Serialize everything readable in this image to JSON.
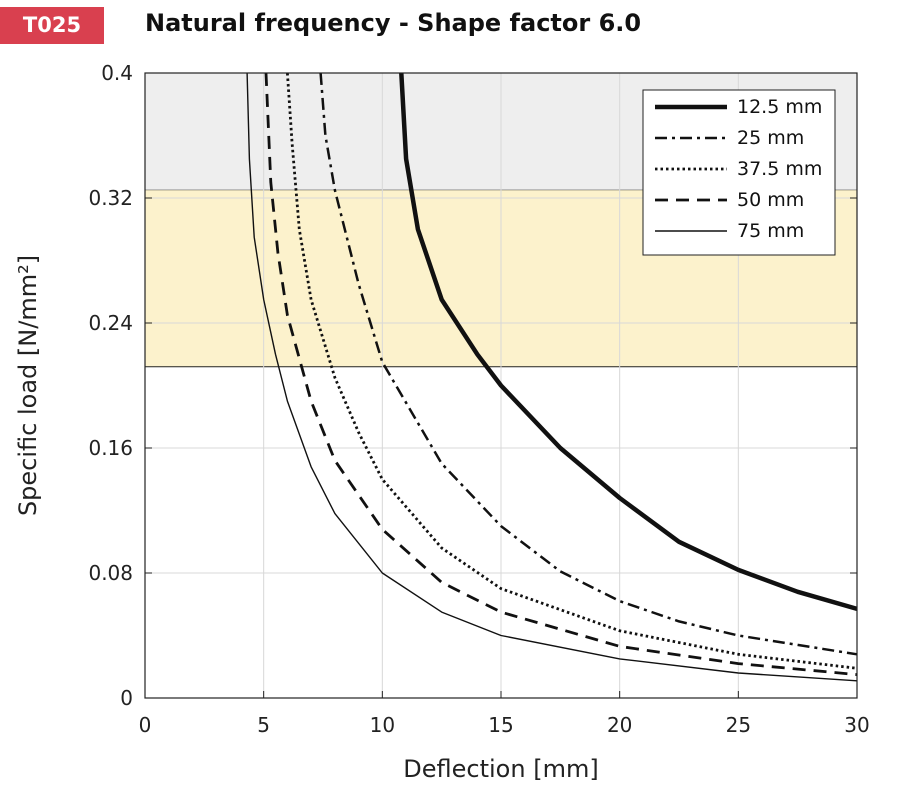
{
  "badge": "T025",
  "title": "Natural frequency - Shape factor 6.0",
  "colors": {
    "badge": "#d9404f",
    "upper_band": "#eeeeee",
    "middle_band": "#fcf2cc",
    "curve": "#111111"
  },
  "chart_data": {
    "type": "line",
    "xlabel": "Deflection  [mm]",
    "ylabel": "Specific load [N/mm²]",
    "xlim": [
      0,
      30
    ],
    "ylim": [
      0,
      0.4
    ],
    "xticks": [
      "0",
      "5",
      "10",
      "15",
      "20",
      "25",
      "30"
    ],
    "yticks": [
      "0",
      "0.08",
      "0.16",
      "0.24",
      "0.32",
      "0.4"
    ],
    "grid": true,
    "legend_position": "top-right",
    "bands": [
      {
        "y": [
          0.325,
          0.4
        ],
        "color": "#eeeeee"
      },
      {
        "y": [
          0.212,
          0.325
        ],
        "color": "#fcf2cc"
      }
    ],
    "series": [
      {
        "name": "12.5 mm",
        "style": "solid-thick",
        "x": [
          10.8,
          11.0,
          11.5,
          12.5,
          14.0,
          15.0,
          17.5,
          20.0,
          22.5,
          25.0,
          27.5,
          30.0
        ],
        "y": [
          0.4,
          0.345,
          0.3,
          0.255,
          0.22,
          0.2,
          0.16,
          0.128,
          0.1,
          0.082,
          0.068,
          0.057
        ]
      },
      {
        "name": "25 mm",
        "style": "dash-dot",
        "x": [
          7.4,
          7.6,
          8.0,
          9.0,
          10.0,
          12.5,
          15.0,
          17.5,
          20.0,
          22.5,
          25.0,
          30.0
        ],
        "y": [
          0.4,
          0.36,
          0.325,
          0.265,
          0.215,
          0.15,
          0.11,
          0.081,
          0.062,
          0.049,
          0.04,
          0.028
        ]
      },
      {
        "name": "37.5 mm",
        "style": "dotted",
        "x": [
          6.0,
          6.2,
          6.5,
          7.0,
          8.0,
          9.0,
          10.0,
          12.5,
          15.0,
          20.0,
          25.0,
          30.0
        ],
        "y": [
          0.4,
          0.355,
          0.3,
          0.255,
          0.205,
          0.17,
          0.14,
          0.096,
          0.07,
          0.043,
          0.028,
          0.019
        ]
      },
      {
        "name": "50 mm",
        "style": "dashed",
        "x": [
          5.1,
          5.3,
          5.6,
          6.0,
          7.0,
          8.0,
          10.0,
          12.5,
          15.0,
          20.0,
          25.0,
          30.0
        ],
        "y": [
          0.4,
          0.33,
          0.285,
          0.245,
          0.19,
          0.152,
          0.108,
          0.074,
          0.055,
          0.033,
          0.022,
          0.015
        ]
      },
      {
        "name": "75 mm",
        "style": "solid-thin",
        "x": [
          4.3,
          4.4,
          4.6,
          5.0,
          5.5,
          6.0,
          7.0,
          8.0,
          10.0,
          12.5,
          15.0,
          20.0,
          25.0,
          30.0
        ],
        "y": [
          0.4,
          0.345,
          0.295,
          0.255,
          0.22,
          0.19,
          0.148,
          0.118,
          0.08,
          0.055,
          0.04,
          0.025,
          0.016,
          0.011
        ]
      }
    ]
  }
}
